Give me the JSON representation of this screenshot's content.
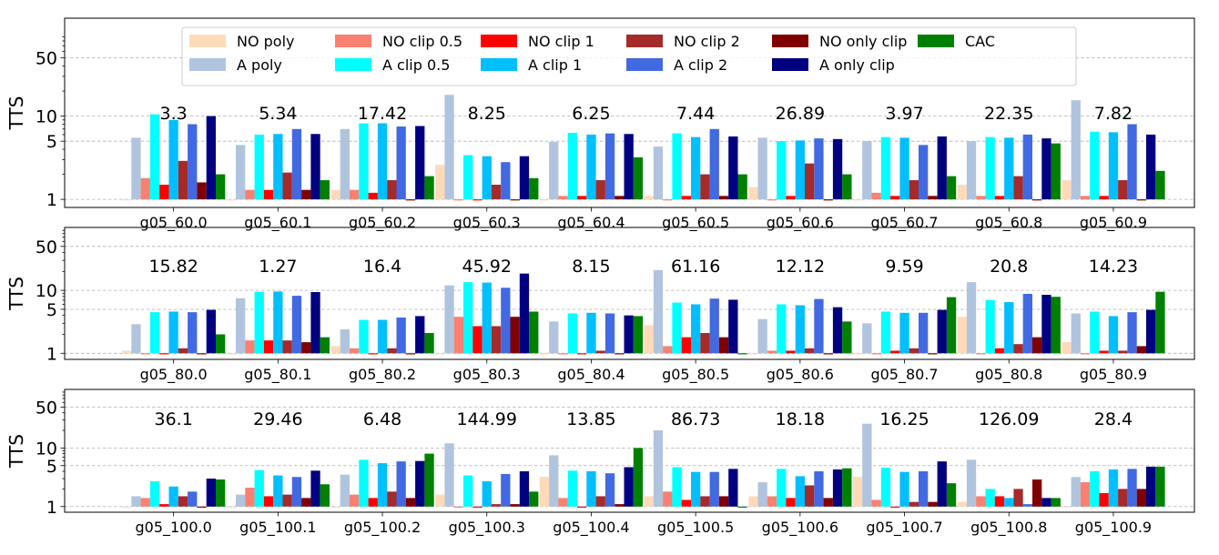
{
  "chart_data": {
    "type": "bar",
    "ylabel": "TTS",
    "yscale": "log",
    "ylim": [
      0.8,
      150
    ],
    "yticks": [
      1,
      5,
      10,
      50
    ],
    "ytick_labels": [
      "1",
      "5",
      "10",
      "50"
    ],
    "grid": true,
    "legend_location": "top-center",
    "legend": [
      {
        "name": "NO poly",
        "color": "#ffdab9"
      },
      {
        "name": "A poly",
        "color": "#b0c4de"
      },
      {
        "name": "NO clip 0.5",
        "color": "#fa8072"
      },
      {
        "name": "A clip 0.5",
        "color": "#00ffff"
      },
      {
        "name": "NO clip 1",
        "color": "#ff0000"
      },
      {
        "name": "A clip 1",
        "color": "#00bfff"
      },
      {
        "name": "NO clip 2",
        "color": "#a52a2a"
      },
      {
        "name": "A clip 2",
        "color": "#4169e1"
      },
      {
        "name": "NO only clip",
        "color": "#800000"
      },
      {
        "name": "A only clip",
        "color": "#000080"
      },
      {
        "name": "CAC",
        "color": "#008000"
      }
    ],
    "series_order": [
      "NO poly",
      "A poly",
      "NO clip 0.5",
      "A clip 0.5",
      "NO clip 1",
      "A clip 1",
      "NO clip 2",
      "A clip 2",
      "NO only clip",
      "A only clip",
      "CAC"
    ],
    "panels": [
      {
        "categories": [
          "g05_60.0",
          "g05_60.1",
          "g05_60.2",
          "g05_60.3",
          "g05_60.4",
          "g05_60.5",
          "g05_60.6",
          "g05_60.7",
          "g05_60.8",
          "g05_60.9"
        ],
        "annotations": [
          "3.3",
          "5.34",
          "17.42",
          "8.25",
          "6.25",
          "7.44",
          "26.89",
          "3.97",
          "22.35",
          "7.82"
        ],
        "values": [
          [
            1.0,
            5.5,
            1.8,
            10.5,
            1.5,
            9.0,
            2.9,
            8.0,
            1.6,
            10.0,
            2.0
          ],
          [
            1.0,
            4.5,
            1.3,
            6.0,
            1.3,
            6.1,
            2.1,
            7.0,
            1.3,
            6.1,
            1.7
          ],
          [
            1.3,
            7.0,
            1.3,
            8.2,
            1.2,
            8.2,
            1.7,
            7.5,
            1.0,
            7.6,
            1.9
          ],
          [
            2.6,
            18.0,
            1.0,
            3.4,
            1.0,
            3.3,
            1.5,
            2.8,
            1.0,
            3.3,
            1.8
          ],
          [
            1.0,
            4.9,
            1.1,
            6.3,
            1.1,
            6.0,
            1.7,
            6.2,
            1.1,
            6.1,
            3.2
          ],
          [
            1.1,
            4.3,
            1.0,
            6.2,
            1.1,
            5.6,
            2.0,
            7.0,
            1.1,
            5.7,
            2.0
          ],
          [
            1.4,
            5.5,
            1.0,
            5.0,
            1.1,
            5.1,
            2.7,
            5.4,
            1.0,
            5.3,
            2.0
          ],
          [
            1.0,
            5.0,
            1.2,
            5.6,
            1.1,
            5.5,
            1.7,
            4.5,
            1.1,
            5.7,
            1.9
          ],
          [
            1.5,
            5.0,
            1.1,
            5.6,
            1.1,
            5.5,
            1.9,
            6.0,
            1.0,
            5.4,
            4.7
          ],
          [
            1.7,
            15.5,
            1.1,
            6.5,
            1.1,
            6.4,
            1.7,
            8.0,
            1.0,
            6.0,
            2.2
          ]
        ]
      },
      {
        "categories": [
          "g05_80.0",
          "g05_80.1",
          "g05_80.2",
          "g05_80.3",
          "g05_80.4",
          "g05_80.5",
          "g05_80.6",
          "g05_80.7",
          "g05_80.8",
          "g05_80.9"
        ],
        "annotations": [
          "15.82",
          "1.27",
          "16.4",
          "45.92",
          "8.15",
          "61.16",
          "12.12",
          "9.59",
          "20.8",
          "14.23"
        ],
        "values": [
          [
            1.1,
            2.9,
            1.0,
            4.5,
            1.0,
            4.6,
            1.2,
            4.5,
            1.0,
            4.9,
            2.0
          ],
          [
            1.0,
            7.5,
            1.6,
            9.5,
            1.6,
            9.6,
            1.6,
            8.2,
            1.5,
            9.4,
            1.8
          ],
          [
            1.3,
            2.4,
            1.2,
            3.4,
            1.0,
            3.4,
            1.2,
            3.7,
            1.0,
            3.9,
            2.1
          ],
          [
            1.0,
            12.0,
            3.8,
            13.5,
            2.7,
            13.3,
            2.7,
            11.0,
            3.8,
            18.5,
            4.6
          ],
          [
            1.0,
            3.2,
            1.0,
            4.3,
            1.0,
            4.4,
            1.1,
            4.3,
            1.0,
            4.0,
            3.9
          ],
          [
            2.8,
            21.0,
            1.3,
            6.4,
            1.8,
            6.0,
            2.1,
            7.4,
            1.8,
            7.1,
            1.0
          ],
          [
            1.0,
            3.5,
            1.1,
            6.0,
            1.1,
            5.8,
            1.2,
            7.3,
            1.0,
            5.4,
            3.2
          ],
          [
            1.0,
            3.0,
            1.0,
            4.6,
            1.1,
            4.4,
            1.2,
            4.4,
            1.0,
            4.9,
            7.8
          ],
          [
            3.8,
            13.5,
            1.0,
            7.0,
            1.2,
            6.5,
            1.4,
            8.8,
            1.8,
            8.5,
            7.9
          ],
          [
            1.5,
            4.3,
            1.0,
            4.6,
            1.1,
            3.9,
            1.1,
            4.5,
            1.3,
            4.9,
            9.5
          ]
        ]
      },
      {
        "categories": [
          "g05_100.0",
          "g05_100.1",
          "g05_100.2",
          "g05_100.3",
          "g05_100.4",
          "g05_100.5",
          "g05_100.6",
          "g05_100.7",
          "g05_100.8",
          "g05_100.9"
        ],
        "annotations": [
          "36.1",
          "29.46",
          "6.48",
          "144.99",
          "13.85",
          "86.73",
          "18.18",
          "16.25",
          "126.09",
          "28.4"
        ],
        "values": [
          [
            1.0,
            1.5,
            1.4,
            2.7,
            1.1,
            2.2,
            1.5,
            1.8,
            1.0,
            3.0,
            2.9
          ],
          [
            1.0,
            1.6,
            2.1,
            4.2,
            1.5,
            3.4,
            1.6,
            3.2,
            1.4,
            4.1,
            2.4
          ],
          [
            1.0,
            3.5,
            1.6,
            6.3,
            1.4,
            5.5,
            1.8,
            5.9,
            1.4,
            6.0,
            8.0
          ],
          [
            1.6,
            12.0,
            1.0,
            3.4,
            1.0,
            2.7,
            1.1,
            3.6,
            1.1,
            4.0,
            1.8
          ],
          [
            3.2,
            7.5,
            1.4,
            4.1,
            1.0,
            4.0,
            1.5,
            3.7,
            1.1,
            4.7,
            10.0
          ],
          [
            1.5,
            20.0,
            1.8,
            4.7,
            1.3,
            3.9,
            1.5,
            3.9,
            1.5,
            4.4,
            1.0
          ],
          [
            1.5,
            2.6,
            1.5,
            4.4,
            1.4,
            3.3,
            2.3,
            4.0,
            1.4,
            4.3,
            4.5
          ],
          [
            3.2,
            26.0,
            1.3,
            4.6,
            1.0,
            3.9,
            1.2,
            4.0,
            1.2,
            5.9,
            2.5
          ],
          [
            1.2,
            6.3,
            1.5,
            2.0,
            1.5,
            1.4,
            2.0,
            1.1,
            2.9,
            1.4,
            1.4
          ],
          [
            1.0,
            3.2,
            2.6,
            4.0,
            1.7,
            4.3,
            2.0,
            4.4,
            2.0,
            4.8,
            4.8
          ]
        ]
      }
    ]
  }
}
